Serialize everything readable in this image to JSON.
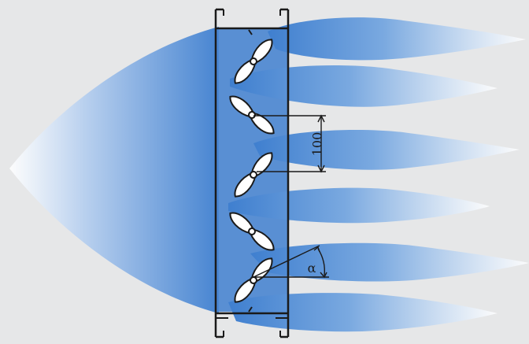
{
  "diagram": {
    "background_color": "#e6e7e8",
    "flow_color": "#3f7fcf",
    "line_color": "#1a1a1a",
    "dimension_label": "100",
    "angle_label": "α",
    "blade_count": 6,
    "outflow_jet_count": 6,
    "icons": [
      "louvre-frame",
      "blade",
      "flow-jet",
      "dimension-line",
      "angle-arc"
    ]
  }
}
